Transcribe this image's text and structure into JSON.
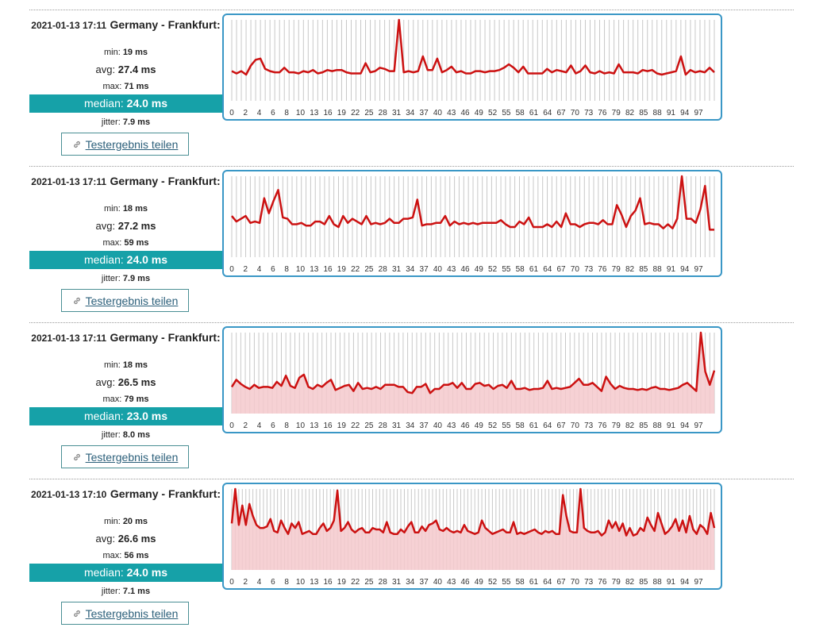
{
  "share_label": "Testergebnis teilen",
  "share_icon": "link-icon",
  "colors": {
    "line": "#cc1111",
    "fill": "#f4c9cc",
    "median_bg": "#16a1a8",
    "border": "#3a97c6",
    "grid": "#c8c8c8"
  },
  "x_tick_labels": [
    "0",
    "2",
    "4",
    "6",
    "8",
    "10",
    "13",
    "16",
    "19",
    "22",
    "25",
    "28",
    "31",
    "34",
    "37",
    "40",
    "43",
    "46",
    "49",
    "52",
    "55",
    "58",
    "61",
    "64",
    "67",
    "70",
    "73",
    "76",
    "79",
    "82",
    "85",
    "88",
    "91",
    "94",
    "97"
  ],
  "results": [
    {
      "timestamp": "2021-01-13 17:11",
      "location": "Germany - Frankfurt:",
      "min_label": "min:",
      "min": "19 ms",
      "avg_label": "avg:",
      "avg": "27.4 ms",
      "max_label": "max:",
      "max": "71 ms",
      "median_label": "median:",
      "median": "24.0 ms",
      "jitter_label": "jitter:",
      "jitter": "7.9 ms",
      "chart_data": {
        "type": "line",
        "filled": false,
        "values": [
          26,
          24,
          26,
          23,
          31,
          36,
          37,
          28,
          26,
          25,
          25,
          29,
          25,
          25,
          24,
          26,
          25,
          27,
          24,
          25,
          27,
          26,
          27,
          27,
          25,
          24,
          24,
          24,
          33,
          25,
          26,
          29,
          28,
          26,
          26,
          71,
          25,
          26,
          25,
          26,
          39,
          27,
          27,
          37,
          25,
          27,
          30,
          25,
          26,
          24,
          24,
          26,
          26,
          25,
          26,
          26,
          27,
          29,
          32,
          29,
          25,
          30,
          24,
          24,
          24,
          24,
          28,
          25,
          27,
          26,
          25,
          31,
          24,
          26,
          31,
          25,
          24,
          26,
          24,
          25,
          24,
          32,
          25,
          25,
          25,
          24,
          27,
          26,
          27,
          24,
          23,
          24,
          25,
          26,
          39,
          23,
          27,
          25,
          26,
          25,
          29,
          25
        ]
      }
    },
    {
      "timestamp": "2021-01-13 17:11",
      "location": "Germany - Frankfurt:",
      "min_label": "min:",
      "min": "18 ms",
      "avg_label": "avg:",
      "avg": "27.2 ms",
      "max_label": "max:",
      "max": "59 ms",
      "median_label": "median:",
      "median": "24.0 ms",
      "jitter_label": "jitter:",
      "jitter": "7.9 ms",
      "chart_data": {
        "type": "line",
        "filled": false,
        "values": [
          30,
          26,
          28,
          30,
          25,
          26,
          25,
          43,
          32,
          41,
          49,
          29,
          28,
          24,
          24,
          25,
          23,
          23,
          26,
          26,
          24,
          30,
          24,
          22,
          30,
          25,
          28,
          26,
          24,
          30,
          24,
          25,
          24,
          25,
          28,
          25,
          25,
          28,
          28,
          29,
          42,
          23,
          24,
          24,
          25,
          25,
          30,
          23,
          26,
          24,
          25,
          24,
          25,
          24,
          25,
          25,
          25,
          25,
          27,
          24,
          22,
          22,
          26,
          24,
          29,
          22,
          22,
          22,
          24,
          22,
          26,
          22,
          32,
          24,
          24,
          22,
          24,
          25,
          25,
          24,
          27,
          24,
          24,
          38,
          31,
          22,
          30,
          34,
          43,
          24,
          25,
          24,
          24,
          21,
          24,
          21,
          28,
          59,
          28,
          28,
          25,
          35,
          52,
          20,
          20
        ]
      }
    },
    {
      "timestamp": "2021-01-13 17:11",
      "location": "Germany - Frankfurt:",
      "min_label": "min:",
      "min": "18 ms",
      "avg_label": "avg:",
      "avg": "26.5 ms",
      "max_label": "max:",
      "max": "79 ms",
      "median_label": "median:",
      "median": "23.0 ms",
      "jitter_label": "jitter:",
      "jitter": "8.0 ms",
      "chart_data": {
        "type": "line",
        "filled": true,
        "values": [
          26,
          33,
          29,
          26,
          24,
          28,
          25,
          26,
          26,
          25,
          31,
          27,
          37,
          27,
          25,
          35,
          38,
          26,
          24,
          28,
          26,
          30,
          33,
          23,
          25,
          27,
          28,
          22,
          30,
          24,
          25,
          24,
          26,
          24,
          28,
          28,
          28,
          26,
          26,
          21,
          20,
          26,
          26,
          29,
          20,
          24,
          24,
          28,
          28,
          30,
          25,
          30,
          24,
          24,
          29,
          30,
          27,
          28,
          24,
          27,
          28,
          25,
          32,
          24,
          24,
          25,
          23,
          24,
          24,
          25,
          32,
          24,
          25,
          24,
          25,
          26,
          30,
          34,
          28,
          28,
          30,
          26,
          22,
          36,
          29,
          24,
          27,
          25,
          24,
          24,
          23,
          24,
          23,
          25,
          26,
          24,
          24,
          23,
          24,
          25,
          28,
          30,
          26,
          22,
          79,
          41,
          28,
          42
        ]
      }
    },
    {
      "timestamp": "2021-01-13 17:10",
      "location": "Germany - Frankfurt:",
      "min_label": "min:",
      "min": "20 ms",
      "avg_label": "avg:",
      "avg": "26.6 ms",
      "max_label": "max:",
      "max": "56 ms",
      "median_label": "median:",
      "median": "24.0 ms",
      "jitter_label": "jitter:",
      "jitter": "7.1 ms",
      "chart_data": {
        "type": "line",
        "filled": true,
        "values": [
          31,
          54,
          30,
          43,
          30,
          44,
          36,
          30,
          28,
          28,
          29,
          34,
          26,
          25,
          33,
          28,
          24,
          31,
          28,
          32,
          24,
          25,
          26,
          24,
          24,
          28,
          31,
          26,
          28,
          33,
          53,
          26,
          28,
          32,
          27,
          25,
          27,
          28,
          25,
          25,
          28,
          27,
          27,
          25,
          32,
          25,
          24,
          24,
          27,
          25,
          29,
          32,
          25,
          25,
          29,
          26,
          30,
          31,
          33,
          27,
          26,
          28,
          26,
          25,
          26,
          25,
          30,
          26,
          25,
          24,
          25,
          33,
          28,
          26,
          24,
          25,
          26,
          27,
          25,
          25,
          32,
          24,
          25,
          24,
          25,
          26,
          27,
          25,
          24,
          26,
          25,
          26,
          24,
          24,
          50,
          36,
          26,
          25,
          25,
          54,
          28,
          26,
          25,
          25,
          26,
          23,
          25,
          33,
          28,
          32,
          26,
          31,
          23,
          28,
          23,
          24,
          28,
          26,
          35,
          30,
          26,
          38,
          31,
          24,
          26,
          29,
          34,
          26,
          33,
          25,
          36,
          27,
          24,
          30,
          28,
          24,
          38,
          28
        ]
      }
    }
  ]
}
